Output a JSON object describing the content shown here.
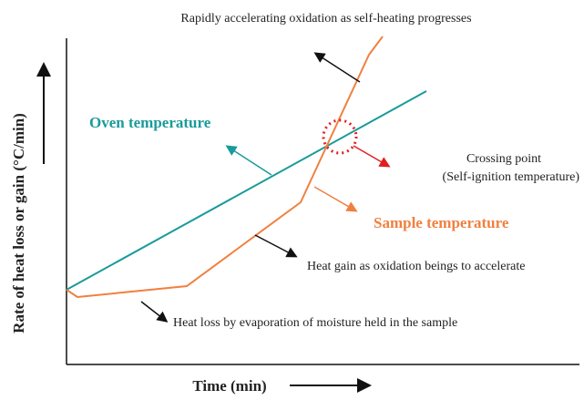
{
  "header": {
    "title": "Rapidly accelerating oxidation as  self-heating progresses"
  },
  "axes": {
    "y_label": "Rate of heat loss or gain (°C/min)",
    "x_label": "Time (min)"
  },
  "curves": {
    "oven": "Oven temperature",
    "sample": "Sample temperature"
  },
  "annotations": {
    "crossing": "Crossing point",
    "crossing_note": "(Self-ignition temperature)",
    "heat_gain": "Heat gain as oxidation beings to accelerate",
    "heat_loss": "Heat loss by evaporation of moisture held in the sample"
  }
}
